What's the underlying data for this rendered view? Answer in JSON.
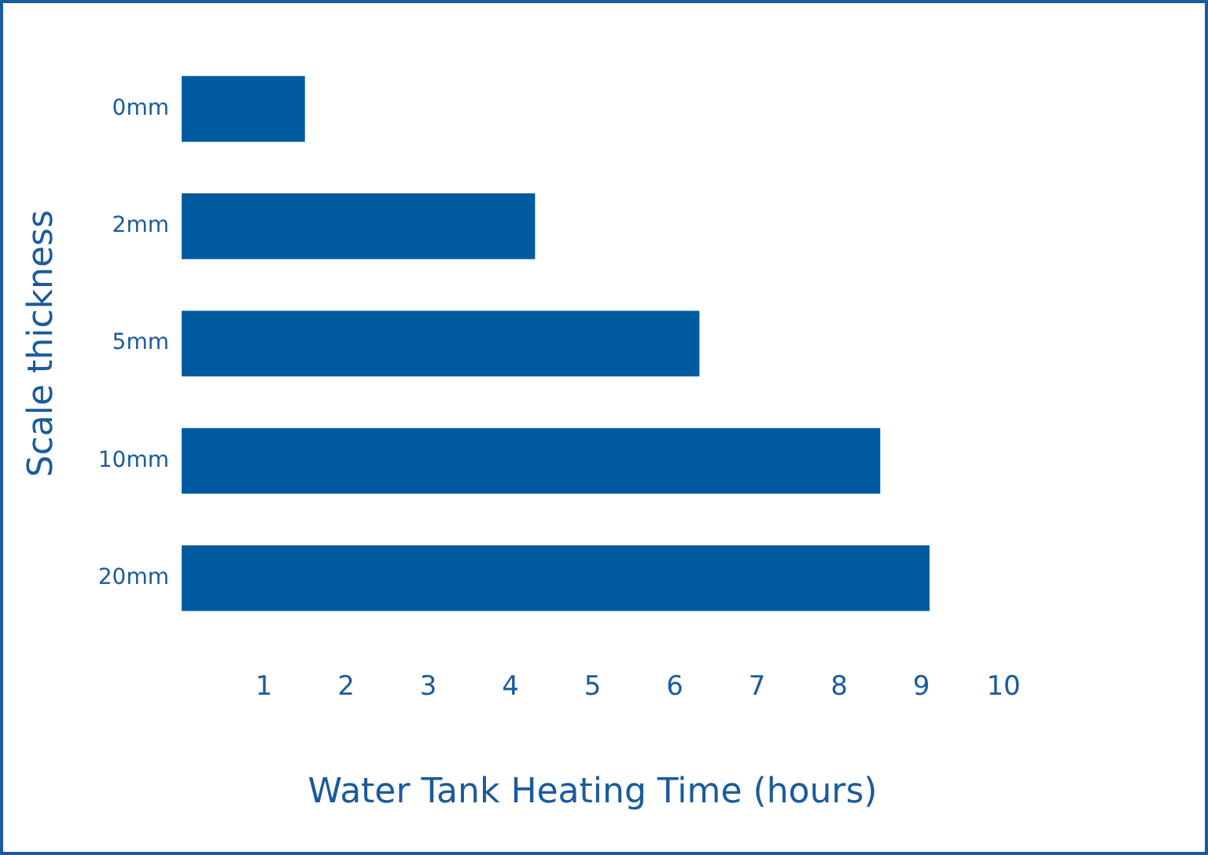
{
  "chart_data": {
    "type": "bar",
    "orientation": "horizontal",
    "xlabel": "Water Tank Heating Time (hours)",
    "ylabel": "Scale thickness",
    "categories": [
      "0mm",
      "2mm",
      "5mm",
      "10mm",
      "20mm"
    ],
    "values": [
      1.5,
      4.3,
      6.3,
      8.5,
      9.1
    ],
    "color": "#005aa0",
    "xlim": [
      0,
      10
    ],
    "xticks": [
      1,
      2,
      3,
      4,
      5,
      6,
      7,
      8,
      9,
      10
    ],
    "grid": false,
    "legend": false
  }
}
